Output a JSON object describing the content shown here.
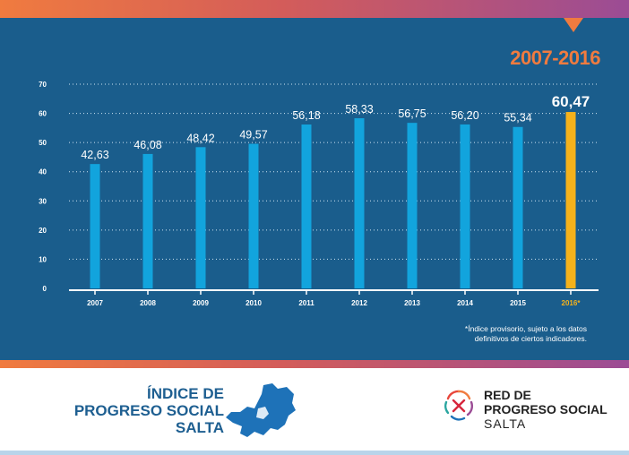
{
  "header": {
    "period": "2007-2016"
  },
  "chart_data": {
    "type": "bar",
    "categories": [
      "2007",
      "2008",
      "2009",
      "2010",
      "2011",
      "2012",
      "2013",
      "2014",
      "2015",
      "2016*"
    ],
    "values": [
      42.63,
      46.08,
      48.42,
      49.57,
      56.18,
      58.33,
      56.75,
      56.2,
      55.34,
      60.47
    ],
    "value_labels": [
      "42,63",
      "46,08",
      "48,42",
      "49,57",
      "56,18",
      "58,33",
      "56,75",
      "56,20",
      "55,34",
      "60,47"
    ],
    "ylim": [
      0,
      70
    ],
    "yticks": [
      0,
      10,
      20,
      30,
      40,
      50,
      60,
      70
    ],
    "grid": true,
    "bar_color": "#12a4dd",
    "highlight_color": "#f5b21b",
    "highlight_index": 9
  },
  "footnote": {
    "line1": "*Índice provisorio, sujeto a los datos",
    "line2": "definitivos de ciertos indicadores."
  },
  "branding": {
    "index_title_line1": "ÍNDICE DE",
    "index_title_line2": "PROGRESO SOCIAL",
    "index_title_line3": "SALTA",
    "network_line1": "RED DE",
    "network_line2": "PROGRESO SOCIAL",
    "network_line3": "SALTA",
    "map_icon": "salta-province-map-icon",
    "network_logo_icon": "red-progreso-social-logo-icon"
  },
  "colors": {
    "panel": "#1a5d8c",
    "accent_orange": "#f07b3f",
    "accent_purple": "#9b4c95",
    "brand_blue": "#1e5f91"
  }
}
